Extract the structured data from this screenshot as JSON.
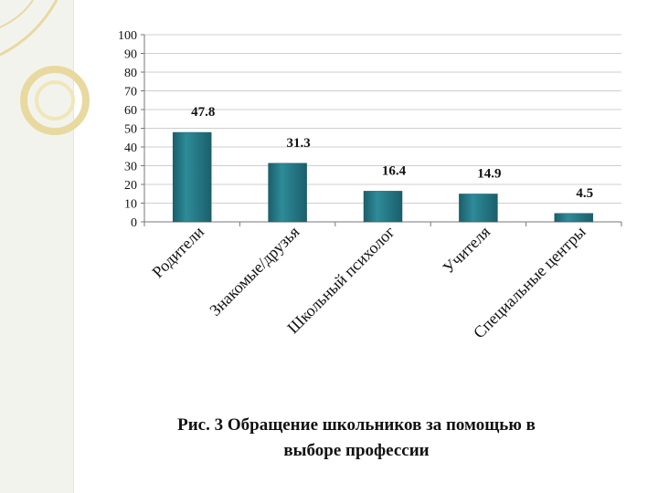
{
  "chart_data": {
    "type": "bar",
    "categories": [
      "Родители",
      "Знакомые/друзья",
      "Школьный психолог",
      "Учителя",
      "Специальные центры"
    ],
    "values": [
      47.8,
      31.3,
      16.4,
      14.9,
      4.5
    ],
    "value_labels": [
      "47.8",
      "31.3",
      "16.4",
      "14.9",
      "4.5"
    ],
    "yticks": [
      "0",
      "10",
      "20",
      "30",
      "40",
      "50",
      "60",
      "70",
      "80",
      "90",
      "100"
    ],
    "ylim": [
      0,
      100
    ],
    "grid": true,
    "legend": "none",
    "bar_color": "#2e8b99",
    "bar_color_dark": "#1a5f6b"
  },
  "caption": {
    "line1": "Рис. 3 Обращение школьников за помощью в",
    "line2": "выборе профессии"
  },
  "colors": {
    "ornament": "#f0e6b8",
    "ornament_stroke": "#e8d9a0"
  }
}
